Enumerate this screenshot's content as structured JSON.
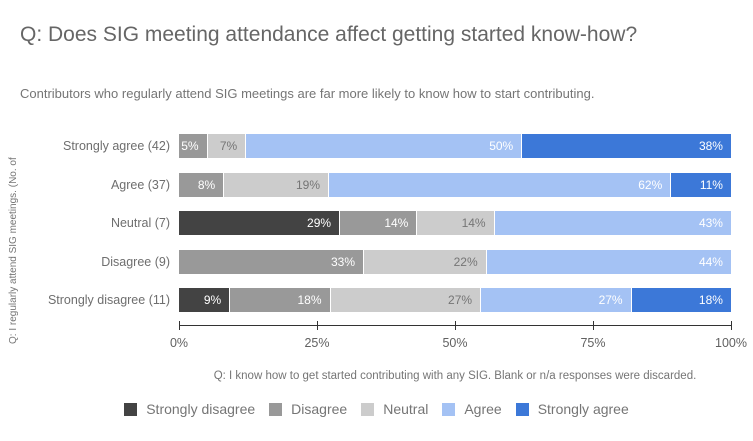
{
  "header": {
    "title": "Q: Does SIG meeting attendance affect getting started know-how?",
    "subtitle": "Contributors who regularly attend SIG meetings are far more likely to know how to start contributing."
  },
  "chart_data": {
    "type": "bar",
    "orientation": "horizontal",
    "stacked": true,
    "stack_unit": "percent",
    "title": "Q: Does SIG meeting attendance affect getting started know-how?",
    "subtitle": "Contributors who regularly attend SIG meetings are far more likely to know how to start contributing.",
    "y_axis_title": "Q: I regularly attend SIG meetings. (No. of",
    "footnote": "Q: I know how to get started contributing with any SIG. Blank or n/a responses were discarded.",
    "x_ticks": [
      "0%",
      "25%",
      "50%",
      "75%",
      "100%"
    ],
    "xlim": [
      0,
      100
    ],
    "grid": false,
    "categories": [
      "Strongly agree (42)",
      "Agree (37)",
      "Neutral (7)",
      "Disagree (9)",
      "Strongly disagree (11)"
    ],
    "series": [
      {
        "name": "Strongly disagree",
        "color": "#434343",
        "label_color": "#ffffff",
        "values": [
          0,
          0,
          29,
          0,
          9
        ]
      },
      {
        "name": "Disagree",
        "color": "#999999",
        "label_color": "#ffffff",
        "values": [
          5,
          8,
          14,
          33,
          18
        ]
      },
      {
        "name": "Neutral",
        "color": "#cccccc",
        "label_color": "#757575",
        "values": [
          7,
          19,
          14,
          22,
          27
        ]
      },
      {
        "name": "Agree",
        "color": "#a4c2f4",
        "label_color": "#ffffff",
        "values": [
          50,
          62,
          43,
          44,
          27
        ]
      },
      {
        "name": "Strongly agree",
        "color": "#3c78d8",
        "label_color": "#ffffff",
        "values": [
          38,
          11,
          0,
          0,
          18
        ]
      }
    ],
    "legend": {
      "position": "bottom",
      "entries": [
        "Strongly disagree",
        "Disagree",
        "Neutral",
        "Agree",
        "Strongly agree"
      ]
    },
    "value_label_suffix": "%"
  }
}
